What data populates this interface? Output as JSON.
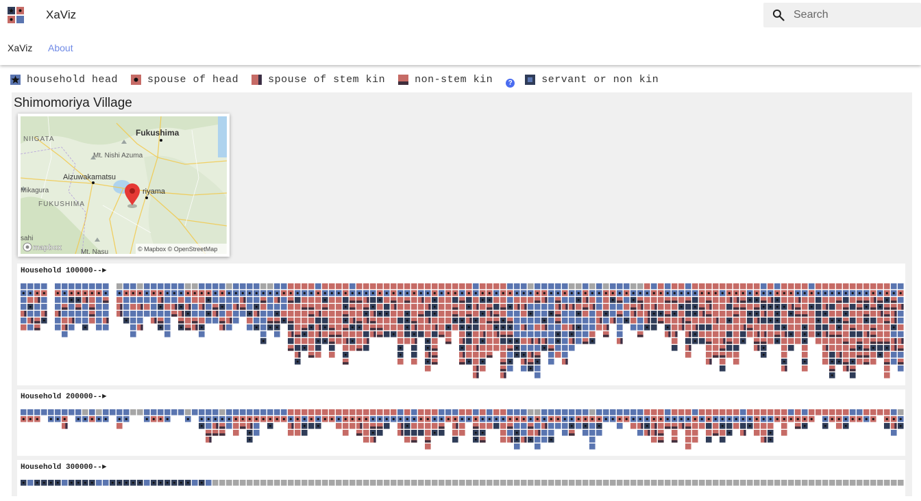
{
  "app": {
    "title": "XaViz"
  },
  "search": {
    "placeholder": "Search",
    "icon": "search-icon"
  },
  "nav": {
    "items": [
      {
        "label": "XaViz"
      },
      {
        "label": "About"
      }
    ]
  },
  "colors": {
    "head": "#5a75b0",
    "spouse": "#c66b66",
    "stem_spouse_left": "#c66b66",
    "stem_spouse_right": "#3c2f45",
    "nonstem_top": "#c66b66",
    "nonstem_bottom": "#3f2e3c",
    "servant": "#2f3c58",
    "unknown": "#a6a6a6",
    "help": "#4a6cf0"
  },
  "legend": [
    {
      "label": "household head",
      "type": "head"
    },
    {
      "label": "spouse of head",
      "type": "spouse"
    },
    {
      "label": "spouse of stem kin",
      "type": "stem"
    },
    {
      "label": "non-stem kin",
      "type": "nonstem",
      "help": "?"
    },
    {
      "label": "servant or non kin",
      "type": "servant"
    }
  ],
  "village": {
    "name": "Shimomoriya Village",
    "map": {
      "labels": [
        "Fukushima",
        "NIIGATA",
        "Mt. Nishi Azuma",
        "Aizuwakamatsu",
        "Mikagura",
        "FUKUSHIMA",
        "riyama",
        "Mt. Nasu",
        "sahi"
      ],
      "attribution": "© Mapbox © OpenStreetMap",
      "logo": "mapbox"
    }
  },
  "households": [
    {
      "label": "Household 100000--►"
    },
    {
      "label": "Household 200000--►"
    },
    {
      "label": "Household 300000--►"
    }
  ]
}
